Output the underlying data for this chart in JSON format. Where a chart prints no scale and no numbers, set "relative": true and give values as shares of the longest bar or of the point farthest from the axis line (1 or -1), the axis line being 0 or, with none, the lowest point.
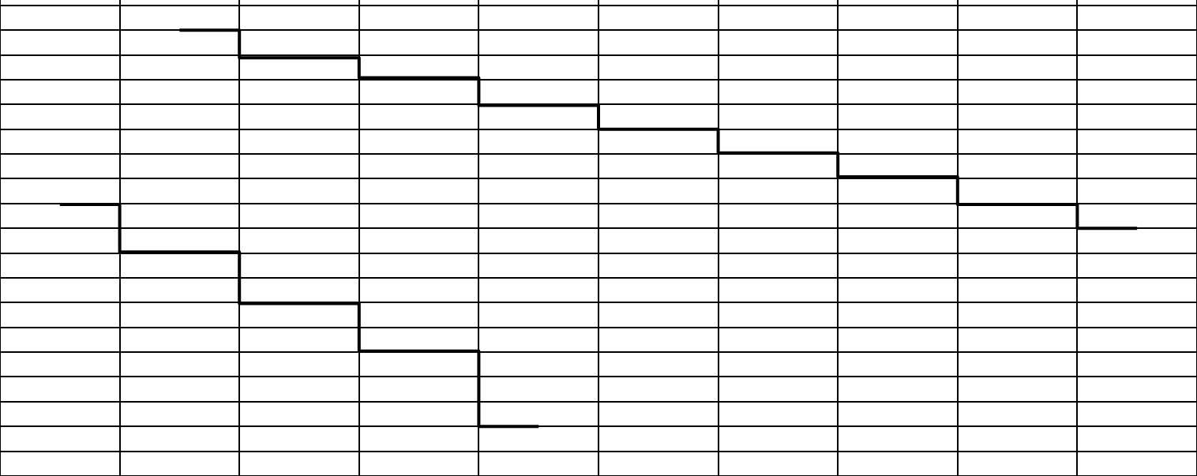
{
  "chart_data": {
    "type": "step",
    "relative": true,
    "grid": true,
    "categories": [
      null,
      null,
      null,
      null,
      null,
      null,
      null,
      null,
      null,
      null
    ],
    "series": [
      {
        "color": "#000000",
        "values": [
          null,
          1,
          0.93,
          0.88,
          0.81,
          0.75,
          0.69,
          0.63,
          0.56,
          0.5
        ]
      },
      {
        "color": "#000000",
        "values": [
          0.56,
          0.44,
          0.31,
          0.19,
          0,
          null,
          null,
          null,
          null,
          null
        ]
      }
    ]
  }
}
